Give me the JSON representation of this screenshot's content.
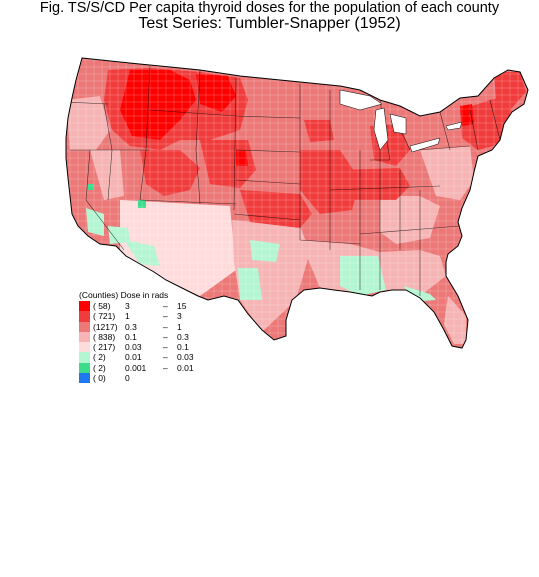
{
  "title_line1": "Fig. TS/S/CD   Per capita thyroid doses for the population of each county",
  "title_line2": "Test Series:   Tumbler-Snapper (1952)",
  "legend": {
    "header": "(Counties)  Dose in rads",
    "rows": [
      {
        "count": "(   58)",
        "lo": "3",
        "dash": "–",
        "hi": "15",
        "color": "#ff0000"
      },
      {
        "count": "(  721)",
        "lo": "1",
        "dash": "–",
        "hi": "3",
        "color": "#f03c3c"
      },
      {
        "count": "(1217)",
        "lo": "0.3",
        "dash": "–",
        "hi": "1",
        "color": "#ec7878"
      },
      {
        "count": "(  838)",
        "lo": "0.1",
        "dash": "–",
        "hi": "0.3",
        "color": "#f6b4b4"
      },
      {
        "count": "(  217)",
        "lo": "0.03",
        "dash": "–",
        "hi": "0.1",
        "color": "#ffdcdc"
      },
      {
        "count": "(     2)",
        "lo": "0.01",
        "dash": "–",
        "hi": "0.03",
        "color": "#b4f5d2"
      },
      {
        "count": "(     2)",
        "lo": "0.001",
        "dash": "–",
        "hi": "0.01",
        "color": "#3cdc8c"
      },
      {
        "count": "(     0)",
        "lo": "0",
        "dash": "",
        "hi": "",
        "color": "#1e78f0"
      }
    ]
  }
}
